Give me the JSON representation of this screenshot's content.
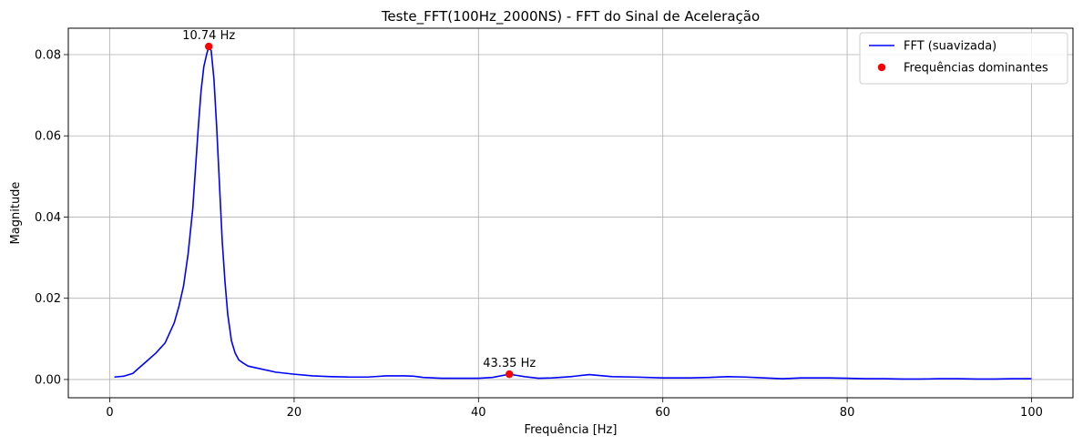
{
  "chart_data": {
    "type": "line",
    "title": "Teste_FFT(100Hz_2000NS) - FFT do Sinal de Aceleração",
    "xlabel": "Frequência [Hz]",
    "ylabel": "Magnitude",
    "xlim": [
      -4.5,
      104.5
    ],
    "ylim": [
      -0.0045,
      0.0865
    ],
    "xticks": [
      0,
      20,
      40,
      60,
      80,
      100
    ],
    "xtick_labels": [
      "0",
      "20",
      "40",
      "60",
      "80",
      "100"
    ],
    "yticks": [
      0.0,
      0.02,
      0.04,
      0.06,
      0.08
    ],
    "ytick_labels": [
      "0.00",
      "0.02",
      "0.04",
      "0.06",
      "0.08"
    ],
    "grid": true,
    "legend_position": "top-right",
    "series": [
      {
        "name": "FFT (suavizada)",
        "color": "#0000ff",
        "style": "line",
        "x": [
          0.5,
          1.5,
          2.5,
          3.0,
          4.0,
          5.0,
          6.0,
          7.0,
          7.5,
          8.0,
          8.5,
          9.0,
          9.3,
          9.6,
          9.9,
          10.2,
          10.5,
          10.74,
          11.0,
          11.3,
          11.6,
          11.9,
          12.2,
          12.5,
          12.8,
          13.2,
          13.6,
          14.0,
          14.5,
          15.0,
          16.0,
          18.0,
          20.0,
          22.0,
          24.0,
          26.0,
          28.0,
          30.0,
          32.0,
          33.0,
          34.0,
          36.0,
          38.0,
          40.0,
          41.5,
          43.35,
          45.0,
          46.5,
          48.0,
          50.0,
          52.0,
          53.0,
          54.5,
          57.0,
          60.0,
          63.0,
          65.0,
          67.0,
          69.0,
          71.0,
          73.0,
          75.0,
          78.0,
          80.0,
          82.0,
          84.0,
          86.0,
          88.0,
          90.0,
          92.0,
          94.0,
          96.0,
          98.0,
          100.0
        ],
        "y": [
          0.0006,
          0.0008,
          0.0015,
          0.0025,
          0.0045,
          0.0065,
          0.009,
          0.014,
          0.018,
          0.023,
          0.031,
          0.042,
          0.052,
          0.062,
          0.071,
          0.077,
          0.08,
          0.082,
          0.081,
          0.074,
          0.062,
          0.048,
          0.034,
          0.024,
          0.016,
          0.0095,
          0.0065,
          0.0048,
          0.004,
          0.0033,
          0.0028,
          0.0018,
          0.0013,
          0.0009,
          0.0007,
          0.0006,
          0.0006,
          0.0009,
          0.0009,
          0.0008,
          0.0005,
          0.0003,
          0.0003,
          0.0003,
          0.0005,
          0.0013,
          0.0007,
          0.0003,
          0.0004,
          0.0007,
          0.0012,
          0.001,
          0.0007,
          0.0006,
          0.0004,
          0.0004,
          0.0005,
          0.0007,
          0.0006,
          0.0004,
          0.0002,
          0.0004,
          0.0004,
          0.0003,
          0.0002,
          0.0002,
          0.0001,
          0.0001,
          0.0002,
          0.0002,
          0.0001,
          0.0001,
          0.0002,
          0.0002
        ]
      },
      {
        "name": "Frequências dominantes",
        "color": "#ff0000",
        "style": "marker",
        "x": [
          10.74,
          43.35
        ],
        "y": [
          0.082,
          0.0013
        ]
      }
    ],
    "annotations": [
      {
        "text": "10.74 Hz",
        "x": 10.74,
        "y": 0.082
      },
      {
        "text": "43.35 Hz",
        "x": 43.35,
        "y": 0.0013
      }
    ]
  }
}
